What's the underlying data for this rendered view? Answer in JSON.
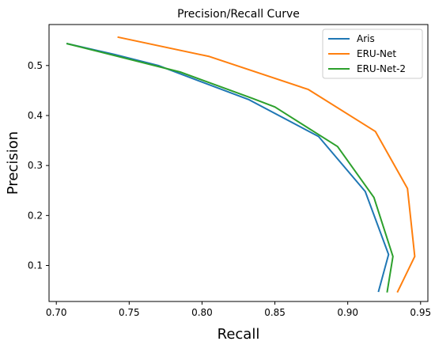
{
  "chart_data": {
    "type": "line",
    "title": "Precision/Recall Curve",
    "xlabel": "Recall",
    "ylabel": "Precision",
    "xlim": [
      0.695,
      0.955
    ],
    "ylim": [
      0.028,
      0.582
    ],
    "xticks": [
      0.7,
      0.75,
      0.8,
      0.85,
      0.9,
      0.95
    ],
    "xtick_labels": [
      "0.70",
      "0.75",
      "0.80",
      "0.85",
      "0.90",
      "0.95"
    ],
    "yticks": [
      0.1,
      0.2,
      0.3,
      0.4,
      0.5
    ],
    "ytick_labels": [
      "0.1",
      "0.2",
      "0.3",
      "0.4",
      "0.5"
    ],
    "grid": false,
    "legend_position": "top-right",
    "series": [
      {
        "name": "Aris",
        "color": "#1f77b4",
        "x": [
          0.707,
          0.74,
          0.77,
          0.8,
          0.832,
          0.88,
          0.912,
          0.928,
          0.921
        ],
        "y": [
          0.544,
          0.522,
          0.5,
          0.467,
          0.432,
          0.358,
          0.248,
          0.122,
          0.047
        ]
      },
      {
        "name": "ERU-Net",
        "color": "#ff7f0e",
        "x": [
          0.742,
          0.805,
          0.873,
          0.919,
          0.941,
          0.946,
          0.934
        ],
        "y": [
          0.557,
          0.518,
          0.452,
          0.368,
          0.254,
          0.118,
          0.046
        ]
      },
      {
        "name": "ERU-Net-2",
        "color": "#2ca02c",
        "x": [
          0.707,
          0.785,
          0.834,
          0.85,
          0.893,
          0.918,
          0.931,
          0.927
        ],
        "y": [
          0.544,
          0.487,
          0.435,
          0.417,
          0.338,
          0.236,
          0.118,
          0.046
        ]
      }
    ]
  }
}
